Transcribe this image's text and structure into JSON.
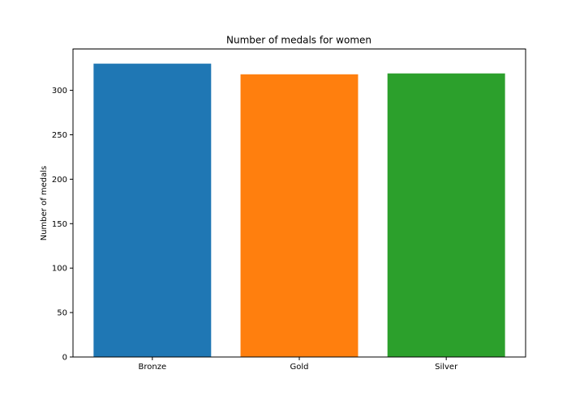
{
  "chart_data": {
    "type": "bar",
    "title": "Number of medals for women",
    "xlabel": "",
    "ylabel": "Number of medals",
    "categories": [
      "Bronze",
      "Gold",
      "Silver"
    ],
    "values": [
      330,
      318,
      319
    ],
    "colors": [
      "#1f77b4",
      "#ff7f0e",
      "#2ca02c"
    ],
    "ylim": [
      0,
      346.5
    ],
    "yticks": [
      0,
      50,
      100,
      150,
      200,
      250,
      300
    ],
    "grid": false,
    "legend": "none"
  }
}
